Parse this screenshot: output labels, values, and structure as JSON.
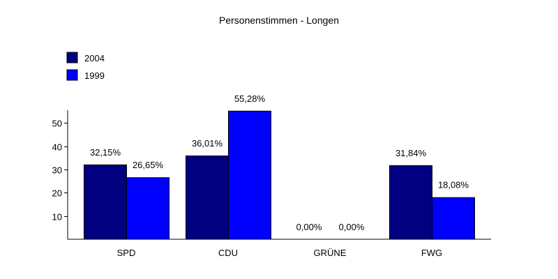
{
  "chart_data": {
    "type": "bar",
    "title": "Personenstimmen - Longen",
    "categories": [
      "SPD",
      "CDU",
      "GRÜNE",
      "FWG"
    ],
    "series": [
      {
        "name": "2004",
        "color": "#000080",
        "values": [
          32.15,
          36.01,
          0.0,
          31.84
        ],
        "labels": [
          "32,15%",
          "36,01%",
          "0,00%",
          "31,84%"
        ]
      },
      {
        "name": "1999",
        "color": "#0000ff",
        "values": [
          26.65,
          55.28,
          0.0,
          18.08
        ],
        "labels": [
          "26,65%",
          "55,28%",
          "0,00%",
          "18,08%"
        ]
      }
    ],
    "yticks": [
      10,
      20,
      30,
      40,
      50
    ],
    "ylim": [
      0,
      55
    ],
    "grid": false,
    "legend": "top-left"
  }
}
